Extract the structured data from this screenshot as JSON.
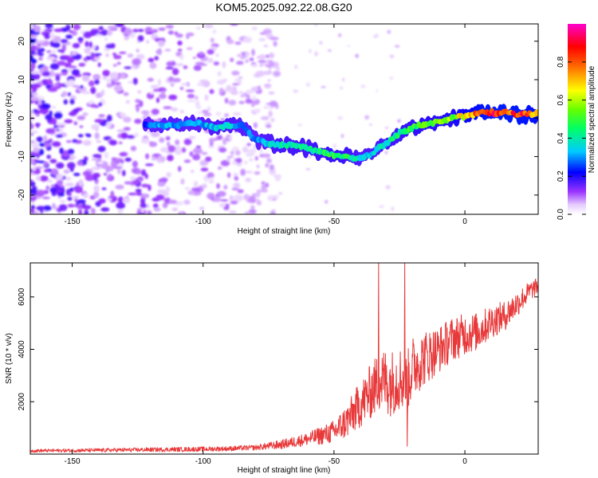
{
  "title": "KOM5.2025.092.22.08.G20",
  "chart_data": [
    {
      "type": "heatmap",
      "xlabel": "Height of straight line (km)",
      "ylabel": "Frequency (Hz)",
      "xlim": [
        -166,
        28
      ],
      "ylim": [
        -25,
        24.5
      ],
      "xticks": [
        -150,
        -100,
        -50,
        0
      ],
      "xtick_labels": [
        "-150",
        "-100",
        "-50",
        "0"
      ],
      "yticks": [
        -20,
        -10,
        0,
        10,
        20
      ],
      "ytick_labels": [
        "-20",
        "-10",
        "0",
        "10",
        "20"
      ],
      "colorbar": {
        "label": "Normalized spectral amplitude",
        "range": [
          0,
          1
        ],
        "ticks": [
          0.0,
          0.2,
          0.4,
          0.6,
          0.8
        ],
        "tick_labels": [
          "0.0",
          "0.2",
          "0.4",
          "0.6",
          "0.8"
        ],
        "colormap": "rainbow (white-violet-blue-cyan-green-yellow-red-magenta)"
      },
      "ridge": {
        "x": [
          -122,
          -115,
          -108,
          -100,
          -95,
          -90,
          -85,
          -80,
          -75,
          -70,
          -65,
          -60,
          -55,
          -50,
          -45,
          -40,
          -35,
          -30,
          -25,
          -20,
          -15,
          -10,
          -5,
          0,
          5,
          10,
          15,
          20,
          25,
          28
        ],
        "y": [
          -1.5,
          -2,
          -1.5,
          -1.5,
          -2.5,
          -2,
          -2,
          -5.5,
          -6.5,
          -7,
          -7,
          -8,
          -9,
          -9.5,
          -10,
          -10.5,
          -9,
          -6.5,
          -4,
          -2.5,
          -1.5,
          -1,
          0,
          0.5,
          1.5,
          1.5,
          1.5,
          1,
          1,
          1
        ],
        "amplitude": [
          0.3,
          0.35,
          0.35,
          0.35,
          0.4,
          0.4,
          0.35,
          0.3,
          0.4,
          0.45,
          0.45,
          0.45,
          0.5,
          0.55,
          0.5,
          0.4,
          0.4,
          0.45,
          0.5,
          0.55,
          0.6,
          0.6,
          0.65,
          0.75,
          0.9,
          0.95,
          0.95,
          0.95,
          0.9,
          0.9
        ]
      }
    },
    {
      "type": "line",
      "xlabel": "Height of straight line (km)",
      "ylabel": "SNR (10 * v/v)",
      "xlim": [
        -166,
        28
      ],
      "ylim": [
        0,
        7300
      ],
      "xticks": [
        -150,
        -100,
        -50,
        0
      ],
      "xtick_labels": [
        "-150",
        "-100",
        "-50",
        "0"
      ],
      "yticks": [
        2000,
        4000,
        6000
      ],
      "ytick_labels": [
        "2000",
        "4000",
        "6000"
      ],
      "color": "#e8393a",
      "trend": {
        "x": [
          -166,
          -140,
          -120,
          -100,
          -90,
          -80,
          -70,
          -60,
          -50,
          -45,
          -40,
          -35,
          -32,
          -28,
          -25,
          -22,
          -20,
          -15,
          -10,
          -5,
          0,
          5,
          10,
          15,
          20,
          25,
          28
        ],
        "y": [
          120,
          140,
          160,
          180,
          200,
          240,
          350,
          550,
          800,
          1200,
          1800,
          2400,
          2700,
          2600,
          2800,
          2600,
          3200,
          3600,
          3900,
          4300,
          4500,
          4600,
          5000,
          5200,
          5700,
          6200,
          6400
        ]
      },
      "noise": {
        "x": [
          -166,
          -80,
          -60,
          -50,
          -40,
          -30,
          -20,
          -10,
          0,
          20,
          28
        ],
        "amp": [
          60,
          100,
          250,
          450,
          900,
          1300,
          1200,
          900,
          800,
          500,
          300
        ]
      },
      "spikes": [
        {
          "x": -33,
          "y": 7300
        },
        {
          "x": -23,
          "y": 7300
        },
        {
          "x": -22,
          "y": 300
        }
      ]
    }
  ]
}
